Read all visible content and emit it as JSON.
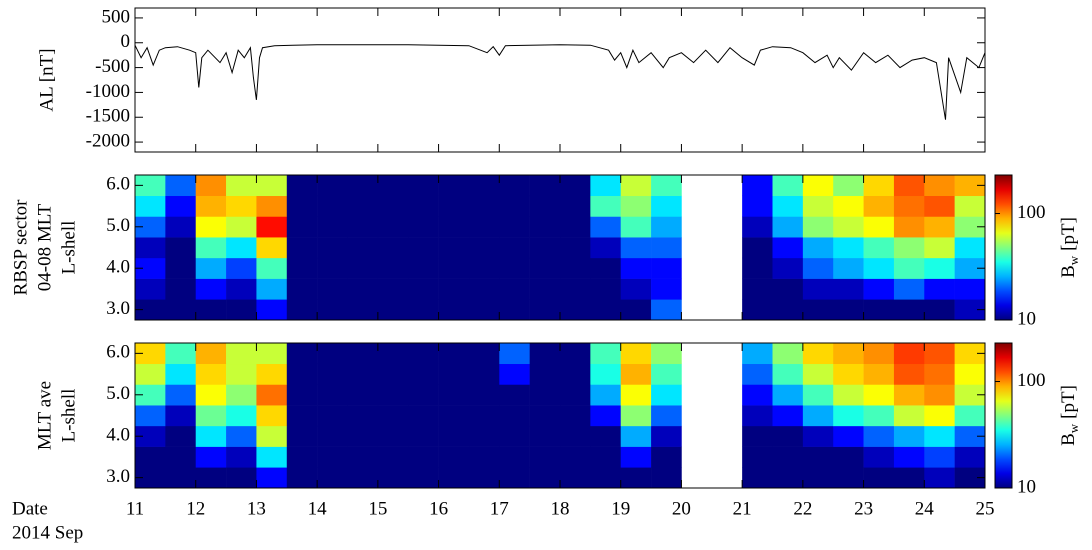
{
  "chart_data": [
    {
      "type": "line",
      "ylabel": "AL [nT]",
      "color": "#000000",
      "x": [
        11.0,
        11.1,
        11.2,
        11.3,
        11.4,
        11.5,
        11.7,
        11.9,
        12.0,
        12.05,
        12.1,
        12.2,
        12.4,
        12.5,
        12.6,
        12.7,
        12.8,
        12.9,
        12.95,
        13.0,
        13.05,
        13.1,
        13.3,
        13.6,
        14.0,
        14.5,
        15.0,
        15.5,
        16.0,
        16.5,
        16.8,
        16.9,
        17.0,
        17.1,
        17.5,
        18.0,
        18.5,
        18.8,
        18.9,
        19.0,
        19.1,
        19.2,
        19.3,
        19.5,
        19.7,
        19.8,
        20.0,
        20.2,
        20.4,
        20.6,
        20.8,
        21.0,
        21.2,
        21.3,
        21.5,
        21.8,
        22.0,
        22.2,
        22.4,
        22.5,
        22.6,
        22.8,
        23.0,
        23.2,
        23.4,
        23.6,
        23.8,
        24.0,
        24.2,
        24.35,
        24.4,
        24.6,
        24.7,
        24.9,
        25.0
      ],
      "values": [
        -50,
        -300,
        -100,
        -450,
        -150,
        -100,
        -80,
        -150,
        -200,
        -900,
        -300,
        -150,
        -400,
        -200,
        -600,
        -150,
        -300,
        -100,
        -700,
        -1150,
        -300,
        -100,
        -60,
        -50,
        -40,
        -40,
        -40,
        -40,
        -50,
        -60,
        -200,
        -80,
        -250,
        -60,
        -50,
        -40,
        -50,
        -150,
        -350,
        -200,
        -500,
        -150,
        -400,
        -200,
        -500,
        -300,
        -200,
        -400,
        -150,
        -400,
        -100,
        -300,
        -450,
        -150,
        -80,
        -100,
        -200,
        -400,
        -250,
        -500,
        -300,
        -550,
        -200,
        -400,
        -250,
        -500,
        -350,
        -300,
        -400,
        -1550,
        -300,
        -1000,
        -300,
        -500,
        -200
      ],
      "xlim": [
        11,
        25
      ],
      "xticks": [
        11,
        12,
        13,
        14,
        15,
        16,
        17,
        18,
        19,
        20,
        21,
        22,
        23,
        24,
        25
      ],
      "ylim": [
        -2200,
        700
      ],
      "yticks": [
        500,
        0,
        -500,
        -1000,
        -1500,
        -2000
      ]
    },
    {
      "type": "heatmap",
      "ylabel_lines": [
        "RBSP sector",
        "04-08 MLT",
        "L-shell"
      ],
      "xbins": [
        11,
        11.5,
        12,
        12.5,
        13,
        13.5,
        14,
        14.5,
        15,
        15.5,
        16,
        16.5,
        17,
        17.5,
        18,
        18.5,
        19,
        19.5,
        20,
        20.5,
        21,
        21.5,
        22,
        22.5,
        23,
        23.5,
        24,
        24.5,
        25
      ],
      "ybins": [
        2.75,
        3.25,
        3.75,
        4.25,
        4.75,
        5.25,
        5.75,
        6.25
      ],
      "z": [
        [
          10,
          10,
          10,
          10,
          15,
          10,
          10,
          10,
          10,
          10,
          10,
          10,
          10,
          10,
          10,
          10,
          10,
          20,
          null,
          null,
          10,
          10,
          10,
          10,
          10,
          10,
          10,
          12
        ],
        [
          12,
          10,
          15,
          12,
          25,
          10,
          10,
          10,
          10,
          10,
          10,
          10,
          10,
          10,
          10,
          10,
          12,
          15,
          null,
          null,
          10,
          10,
          12,
          12,
          15,
          20,
          15,
          15
        ],
        [
          15,
          10,
          25,
          18,
          40,
          10,
          10,
          10,
          10,
          10,
          10,
          10,
          10,
          10,
          10,
          10,
          15,
          15,
          null,
          null,
          10,
          12,
          20,
          25,
          30,
          40,
          35,
          25
        ],
        [
          12,
          10,
          40,
          30,
          80,
          10,
          10,
          10,
          10,
          10,
          10,
          10,
          10,
          10,
          10,
          12,
          20,
          20,
          null,
          null,
          10,
          15,
          25,
          30,
          40,
          50,
          60,
          30
        ],
        [
          20,
          12,
          70,
          60,
          150,
          10,
          10,
          10,
          10,
          10,
          10,
          10,
          10,
          10,
          10,
          20,
          40,
          25,
          null,
          null,
          12,
          25,
          50,
          60,
          70,
          100,
          90,
          50
        ],
        [
          30,
          15,
          90,
          80,
          100,
          10,
          10,
          10,
          10,
          10,
          10,
          10,
          10,
          10,
          10,
          40,
          50,
          30,
          null,
          null,
          15,
          30,
          60,
          70,
          90,
          110,
          120,
          60
        ],
        [
          40,
          20,
          100,
          60,
          60,
          10,
          10,
          10,
          10,
          10,
          10,
          10,
          10,
          10,
          10,
          30,
          60,
          40,
          null,
          null,
          15,
          40,
          70,
          50,
          80,
          120,
          100,
          90
        ]
      ],
      "xlim": [
        11,
        25
      ],
      "xticks": [
        11,
        12,
        13,
        14,
        15,
        16,
        17,
        18,
        19,
        20,
        21,
        22,
        23,
        24,
        25
      ],
      "ylim": [
        2.75,
        6.25
      ],
      "yticks": [
        {
          "value": 3,
          "label": "3.0"
        },
        {
          "value": 4,
          "label": "4.0"
        },
        {
          "value": 5,
          "label": "5.0"
        },
        {
          "value": 6,
          "label": "6.0"
        }
      ],
      "clim": [
        10,
        230
      ],
      "colorscale": "jet",
      "log_color": true,
      "colorbar_label": {
        "text": "B",
        "sub": "w",
        "unit": "[pT]"
      },
      "colorbar_ticks": [
        10,
        100
      ]
    },
    {
      "type": "heatmap",
      "ylabel_lines": [
        "MLT ave",
        "L-shell"
      ],
      "xbins": [
        11,
        11.5,
        12,
        12.5,
        13,
        13.5,
        14,
        14.5,
        15,
        15.5,
        16,
        16.5,
        17,
        17.5,
        18,
        18.5,
        19,
        19.5,
        20,
        20.5,
        21,
        21.5,
        22,
        22.5,
        23,
        23.5,
        24,
        24.5,
        25
      ],
      "ybins": [
        2.75,
        3.25,
        3.75,
        4.25,
        4.75,
        5.25,
        5.75,
        6.25
      ],
      "z": [
        [
          10,
          10,
          10,
          10,
          15,
          10,
          10,
          10,
          10,
          10,
          10,
          10,
          10,
          10,
          10,
          10,
          10,
          10,
          null,
          null,
          10,
          10,
          10,
          10,
          10,
          10,
          12,
          10
        ],
        [
          10,
          10,
          15,
          12,
          30,
          10,
          10,
          10,
          10,
          10,
          10,
          10,
          10,
          10,
          10,
          10,
          15,
          10,
          null,
          null,
          10,
          10,
          10,
          10,
          12,
          15,
          18,
          12
        ],
        [
          12,
          10,
          30,
          20,
          60,
          10,
          10,
          10,
          10,
          10,
          10,
          10,
          10,
          10,
          10,
          10,
          25,
          12,
          null,
          null,
          10,
          10,
          12,
          15,
          20,
          25,
          30,
          20
        ],
        [
          20,
          12,
          45,
          35,
          80,
          10,
          10,
          10,
          10,
          10,
          10,
          10,
          10,
          10,
          10,
          15,
          50,
          20,
          null,
          null,
          12,
          15,
          25,
          35,
          40,
          60,
          70,
          40
        ],
        [
          40,
          20,
          70,
          50,
          110,
          10,
          10,
          10,
          10,
          10,
          10,
          10,
          10,
          10,
          10,
          25,
          70,
          30,
          null,
          null,
          15,
          25,
          40,
          60,
          70,
          90,
          100,
          60
        ],
        [
          60,
          30,
          80,
          60,
          80,
          10,
          10,
          10,
          10,
          10,
          10,
          10,
          15,
          10,
          10,
          35,
          90,
          40,
          null,
          null,
          20,
          40,
          60,
          80,
          90,
          120,
          110,
          70
        ],
        [
          80,
          40,
          90,
          60,
          60,
          10,
          10,
          10,
          10,
          10,
          10,
          10,
          20,
          10,
          10,
          40,
          80,
          50,
          null,
          null,
          25,
          50,
          80,
          90,
          100,
          130,
          120,
          80
        ]
      ],
      "xlim": [
        11,
        25
      ],
      "xticks": [
        11,
        12,
        13,
        14,
        15,
        16,
        17,
        18,
        19,
        20,
        21,
        22,
        23,
        24,
        25
      ],
      "ylim": [
        2.75,
        6.25
      ],
      "yticks": [
        {
          "value": 3,
          "label": "3.0"
        },
        {
          "value": 4,
          "label": "4.0"
        },
        {
          "value": 5,
          "label": "5.0"
        },
        {
          "value": 6,
          "label": "6.0"
        }
      ],
      "clim": [
        10,
        230
      ],
      "colorscale": "jet",
      "log_color": true,
      "colorbar_label": {
        "text": "B",
        "sub": "w",
        "unit": "[pT]"
      },
      "colorbar_ticks": [
        10,
        100
      ],
      "xlabel_lines": [
        "Date",
        "2014 Sep"
      ]
    }
  ]
}
